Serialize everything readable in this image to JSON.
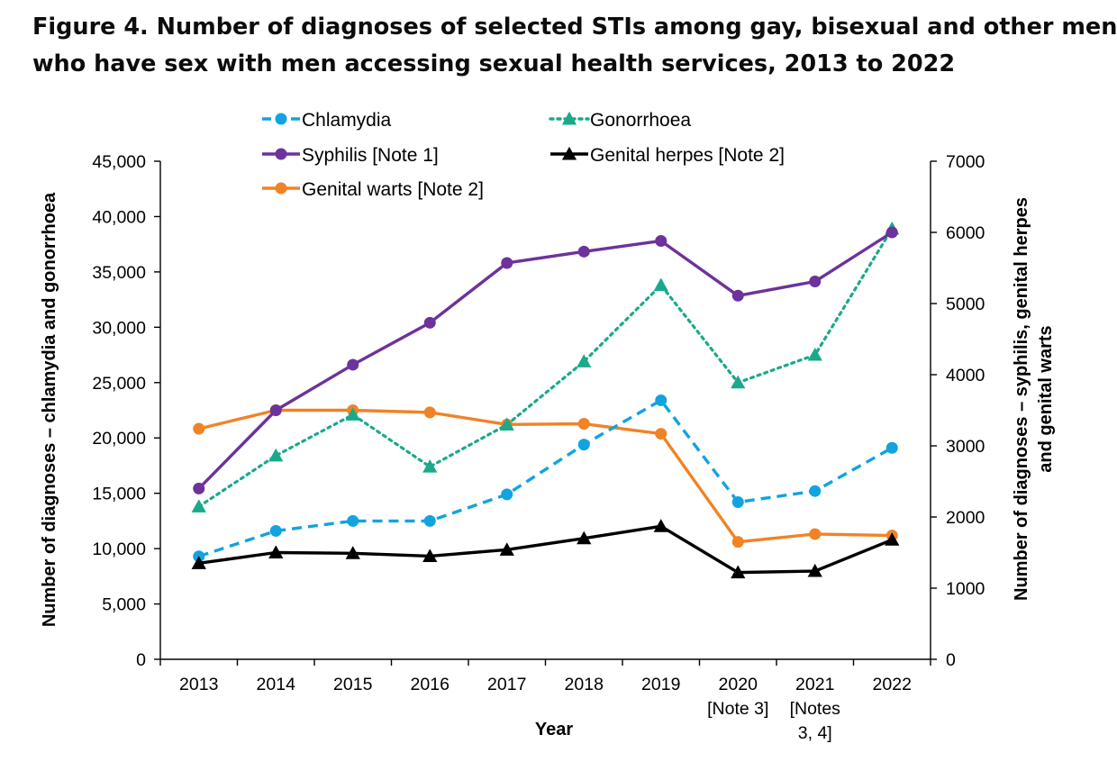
{
  "figure": {
    "title_line1": "Figure 4. Number of diagnoses of selected STIs among gay, bisexual and other men",
    "title_line2": "who have sex with men accessing sexual health services, 2013 to 2022"
  },
  "chart_data": {
    "type": "line",
    "xlabel": "Year",
    "ylabel_left": "Number of diagnoses – chlamydia and gonorrhoea",
    "ylabel_right_line1": "Number of diagnoses – syphilis, genital herpes",
    "ylabel_right_line2": "and genital warts",
    "categories": [
      [
        "2013"
      ],
      [
        "2014"
      ],
      [
        "2015"
      ],
      [
        "2016"
      ],
      [
        "2017"
      ],
      [
        "2018"
      ],
      [
        "2019"
      ],
      [
        "2020",
        "[Note 3]"
      ],
      [
        "2021",
        "[Notes",
        "3, 4]"
      ],
      [
        "2022"
      ]
    ],
    "left_axis": {
      "min": 0,
      "max": 45000,
      "step": 5000,
      "tick_labels": [
        "0",
        "5,000",
        "10,000",
        "15,000",
        "20,000",
        "25,000",
        "30,000",
        "35,000",
        "40,000",
        "45,000"
      ]
    },
    "right_axis": {
      "min": 0,
      "max": 7000,
      "step": 1000,
      "tick_labels": [
        "0",
        "1000",
        "2000",
        "3000",
        "4000",
        "5000",
        "6000",
        "7000"
      ]
    },
    "series": [
      {
        "name": "Chlamydia",
        "axis": "left",
        "color": "#12a3e0",
        "dash": "dashed",
        "marker": "circle",
        "values": [
          9300,
          11600,
          12500,
          12500,
          14900,
          19400,
          23400,
          14200,
          15200,
          19100
        ]
      },
      {
        "name": "Gonorrhoea",
        "axis": "left",
        "color": "#1aa98a",
        "dash": "dotted",
        "marker": "triangle",
        "values": [
          13800,
          18400,
          22100,
          17400,
          21200,
          26900,
          33800,
          25000,
          27500,
          38900
        ]
      },
      {
        "name": "Syphilis [Note 1]",
        "axis": "right",
        "color": "#6d329b",
        "dash": "solid",
        "marker": "circle",
        "values": [
          2400,
          3500,
          4140,
          4730,
          5570,
          5730,
          5880,
          5110,
          5310,
          6000
        ]
      },
      {
        "name": "Genital herpes [Note 2]",
        "axis": "right",
        "color": "#000000",
        "dash": "solid",
        "marker": "triangle",
        "values": [
          1350,
          1500,
          1490,
          1450,
          1540,
          1700,
          1870,
          1220,
          1240,
          1680
        ]
      },
      {
        "name": "Genital warts [Note 2]",
        "axis": "right",
        "color": "#f08326",
        "dash": "solid",
        "marker": "circle",
        "values": [
          3240,
          3500,
          3500,
          3470,
          3300,
          3310,
          3170,
          1650,
          1760,
          1740
        ]
      }
    ],
    "legend_order": [
      0,
      1,
      2,
      3,
      4
    ],
    "legend_position": "top"
  }
}
